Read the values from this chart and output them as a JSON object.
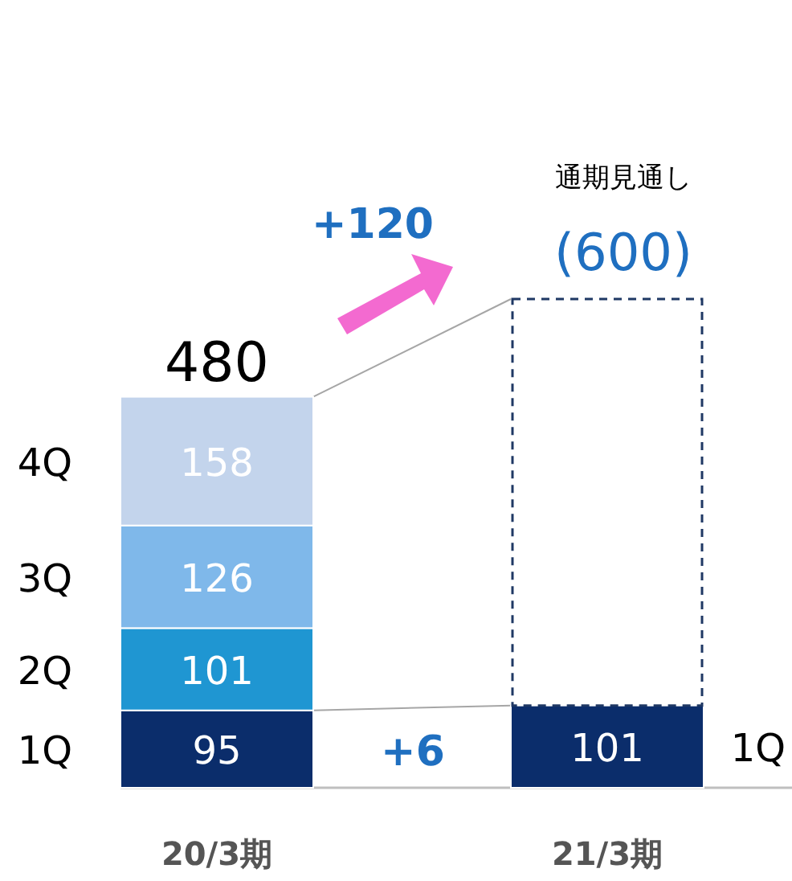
{
  "chart_data": {
    "type": "bar",
    "stacked": true,
    "categories": [
      "20/3期",
      "21/3期"
    ],
    "series": [
      {
        "name": "1Q",
        "color": "#0b2d6b",
        "values": [
          95,
          101
        ]
      },
      {
        "name": "2Q",
        "color": "#1f96d2",
        "values": [
          101,
          null
        ]
      },
      {
        "name": "3Q",
        "color": "#7fb8ea",
        "values": [
          126,
          null
        ]
      },
      {
        "name": "4Q",
        "color": "#c3d4ec",
        "values": [
          158,
          null
        ]
      },
      {
        "color": "#1f3864",
        "line_style": "dashed",
        "values": [
          null,
          499
        ],
        "value_labels": [
          null,
          null
        ]
      }
    ],
    "data_labels": true,
    "totals": [
      "480",
      "(600)"
    ],
    "annotations": [
      "通期見通し",
      "+120",
      "+6"
    ]
  }
}
